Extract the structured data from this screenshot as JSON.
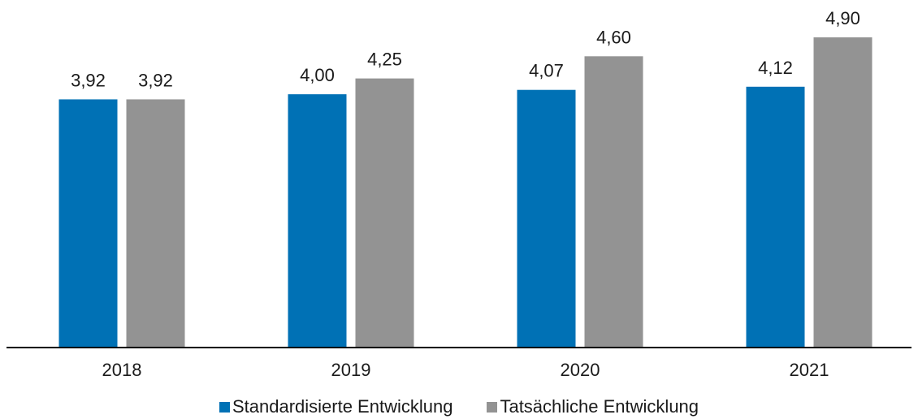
{
  "chart_data": {
    "type": "bar",
    "categories": [
      "2018",
      "2019",
      "2020",
      "2021"
    ],
    "series": [
      {
        "name": "Standardisierte Entwicklung",
        "values": [
          3.92,
          4.0,
          4.07,
          4.12
        ],
        "labels": [
          "3,92",
          "4,00",
          "4,07",
          "4,12"
        ],
        "color": "#0071b5"
      },
      {
        "name": "Tatsächliche Entwicklung",
        "values": [
          3.92,
          4.25,
          4.6,
          4.9
        ],
        "labels": [
          "3,92",
          "4,25",
          "4,60",
          "4,90"
        ],
        "color": "#939393"
      }
    ],
    "title": "",
    "xlabel": "",
    "ylabel": "",
    "ylim": [
      0,
      5.2
    ],
    "grid": false,
    "legend_position": "bottom"
  }
}
